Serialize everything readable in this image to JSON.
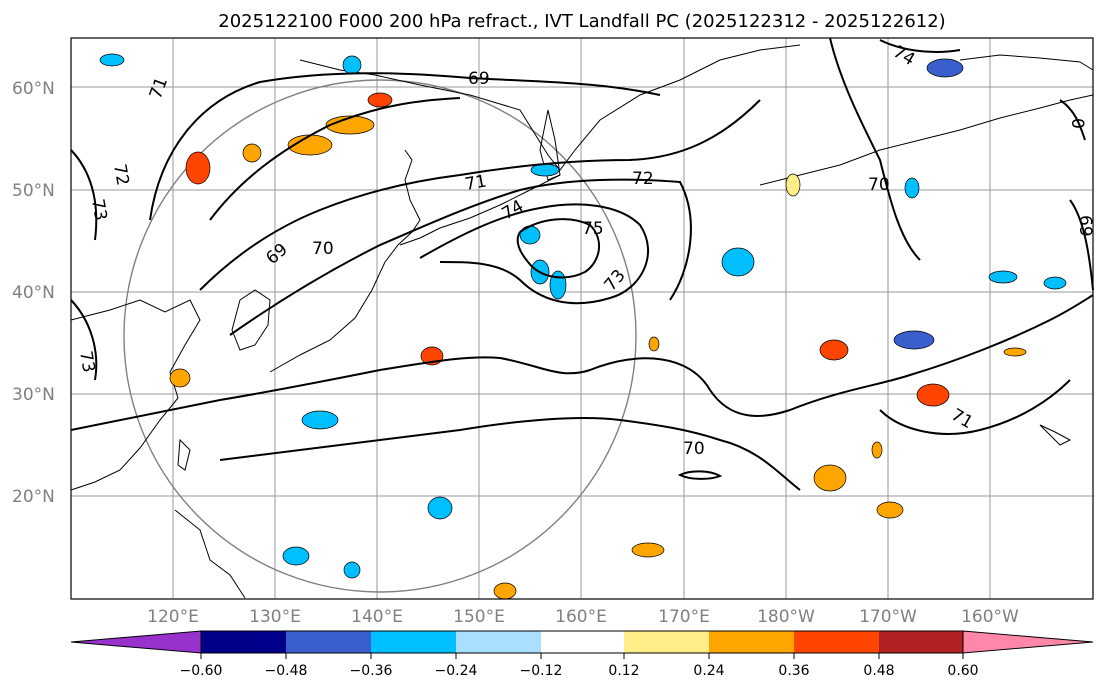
{
  "title": "2025122100 F000 200 hPa refract., IVT Landfall PC (2025122312 - 2025122612)",
  "map": {
    "lat_ticks": [
      "60°N",
      "50°N",
      "40°N",
      "30°N",
      "20°N"
    ],
    "lon_ticks": [
      "120°E",
      "130°E",
      "140°E",
      "150°E",
      "160°E",
      "170°E",
      "180°W",
      "170°W",
      "160°W"
    ],
    "contour_labels": [
      "71",
      "69",
      "72",
      "73",
      "71",
      "72",
      "74",
      "75",
      "73",
      "70",
      "69",
      "70",
      "73",
      "71",
      "70",
      "74",
      "69",
      "0"
    ],
    "colors": {
      "frame": "#000000",
      "grid": "#999999",
      "tick_text": "#808080",
      "circle": "#808080"
    }
  },
  "colorbar": {
    "ticks": [
      "−0.60",
      "−0.48",
      "−0.36",
      "−0.24",
      "−0.12",
      "0.12",
      "0.24",
      "0.36",
      "0.48",
      "0.60"
    ],
    "colors": [
      "#9932cc",
      "#00008b",
      "#3a5fcd",
      "#00bfff",
      "#aadfff",
      "#ffffff",
      "#ffee88",
      "#ffa500",
      "#ff4500",
      "#b22222",
      "#ff88aa"
    ]
  }
}
